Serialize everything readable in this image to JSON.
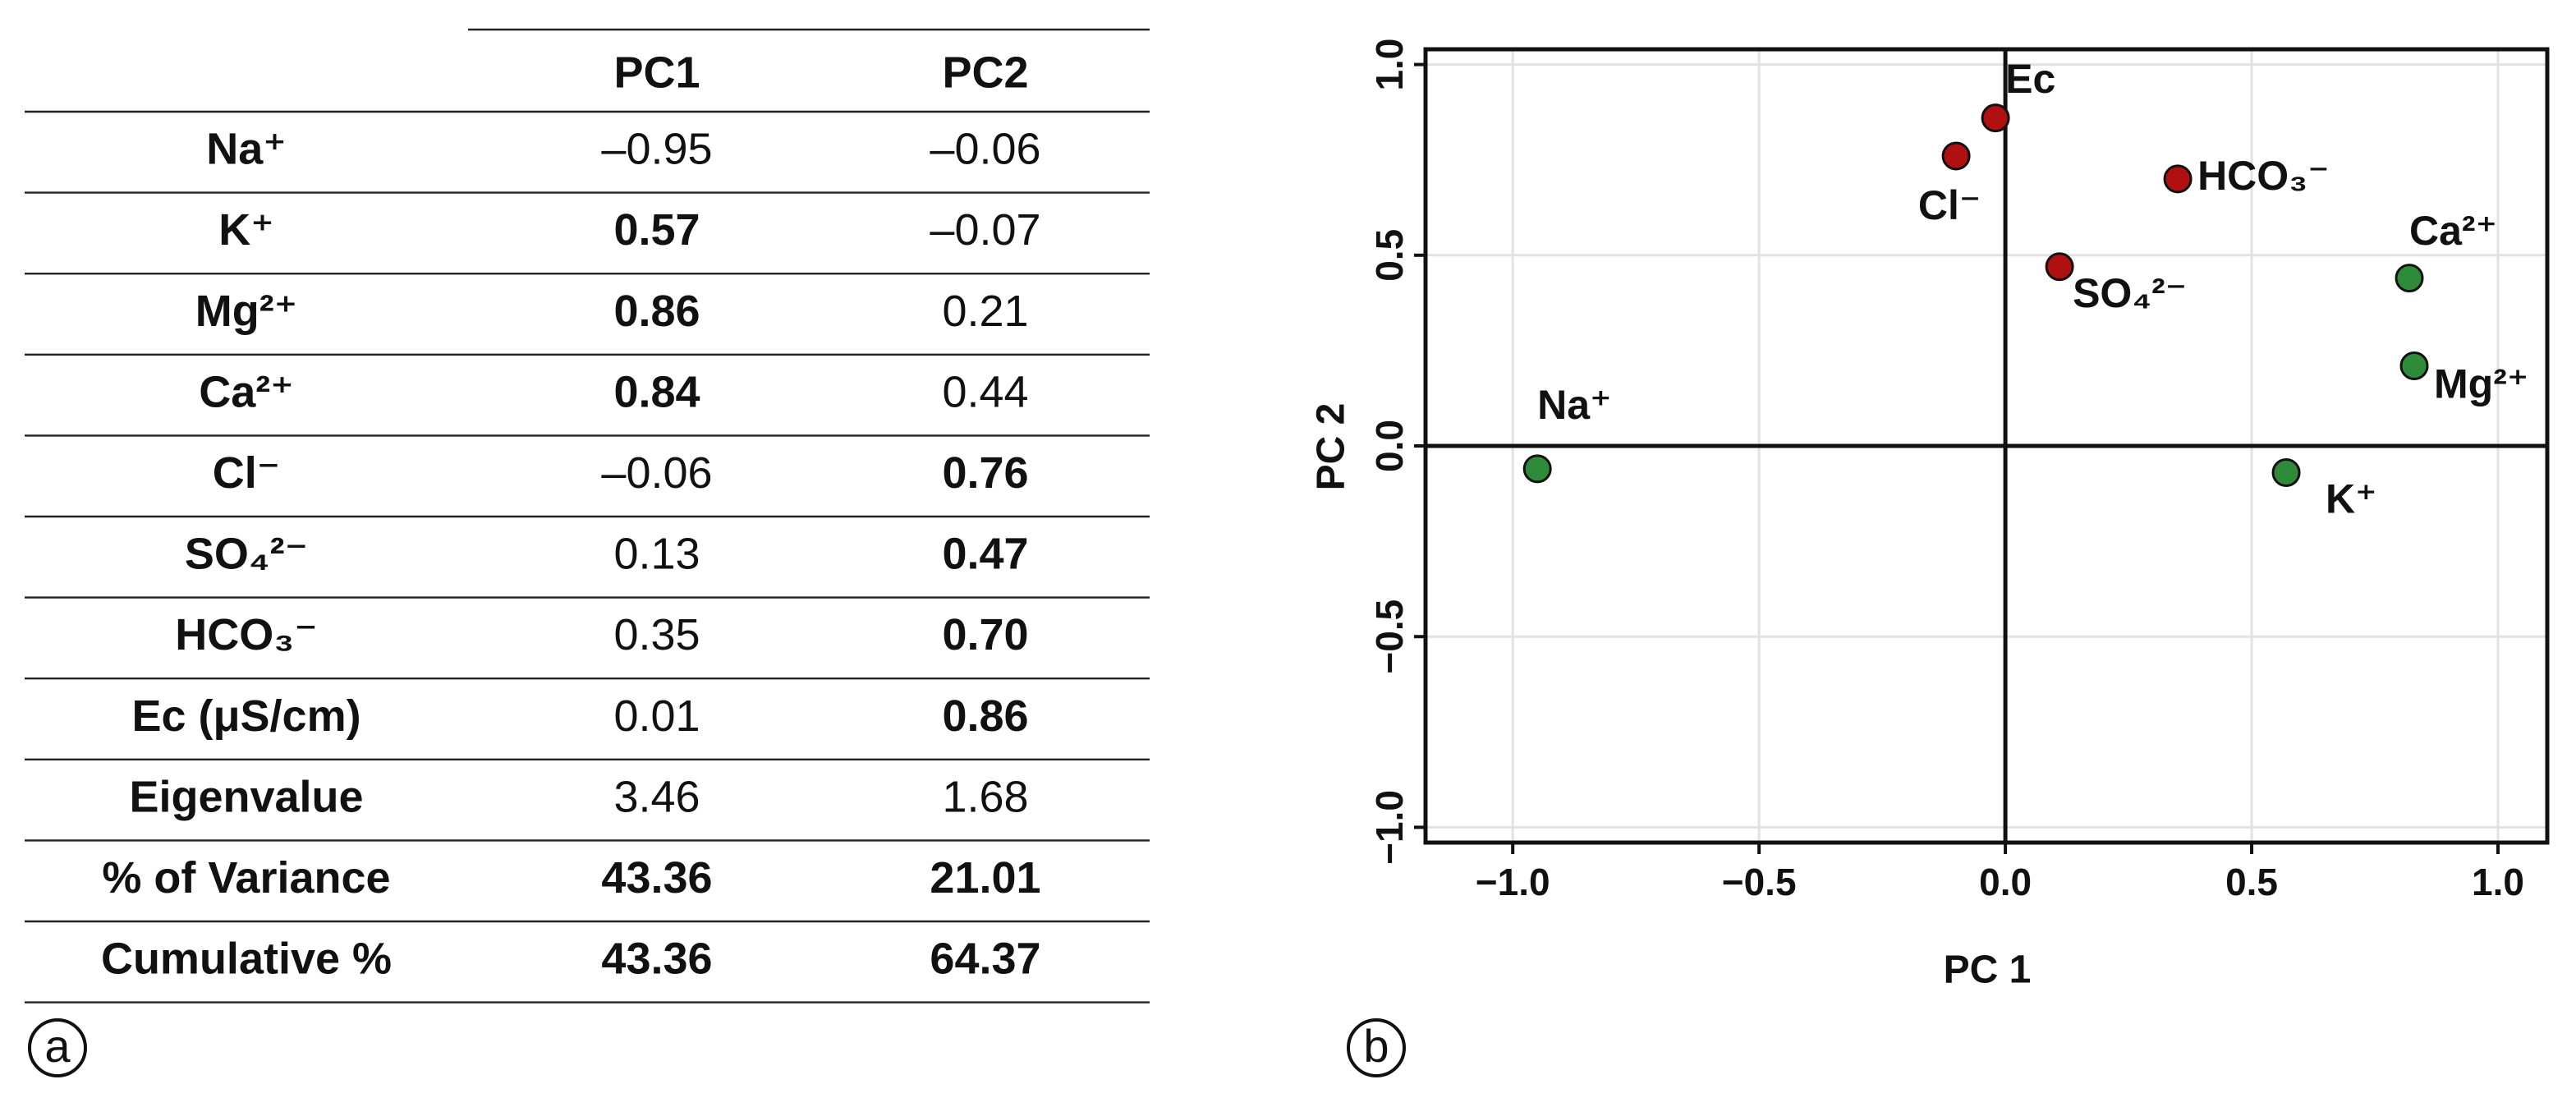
{
  "table": {
    "columns": [
      "PC1",
      "PC2"
    ],
    "rows": [
      {
        "label": "Na⁺",
        "values": [
          "–0.95",
          "–0.06"
        ],
        "bold": [
          false,
          false
        ]
      },
      {
        "label": "K⁺",
        "values": [
          "0.57",
          "–0.07"
        ],
        "bold": [
          true,
          false
        ]
      },
      {
        "label": "Mg²⁺",
        "values": [
          "0.86",
          "0.21"
        ],
        "bold": [
          true,
          false
        ]
      },
      {
        "label": "Ca²⁺",
        "values": [
          "0.84",
          "0.44"
        ],
        "bold": [
          true,
          false
        ]
      },
      {
        "label": "Cl⁻",
        "values": [
          "–0.06",
          "0.76"
        ],
        "bold": [
          false,
          true
        ]
      },
      {
        "label": "SO₄²⁻",
        "values": [
          "0.13",
          "0.47"
        ],
        "bold": [
          false,
          true
        ]
      },
      {
        "label": "HCO₃⁻",
        "values": [
          "0.35",
          "0.70"
        ],
        "bold": [
          false,
          true
        ]
      },
      {
        "label": "Ec (μS/cm)",
        "values": [
          "0.01",
          "0.86"
        ],
        "bold": [
          false,
          true
        ]
      },
      {
        "label": "Eigenvalue",
        "values": [
          "3.46",
          "1.68"
        ],
        "bold": [
          false,
          false
        ]
      },
      {
        "label": "% of Variance",
        "values": [
          "43.36",
          "21.01"
        ],
        "bold": [
          true,
          true
        ]
      },
      {
        "label": "Cumulative %",
        "values": [
          "43.36",
          "64.37"
        ],
        "bold": [
          true,
          true
        ]
      }
    ]
  },
  "panel_labels": [
    "a",
    "b"
  ],
  "chart_data": {
    "type": "scatter",
    "xlabel": "PC 1",
    "ylabel": "PC 2",
    "point_labels": [
      "Na⁺",
      "K⁺",
      "Mg²⁺",
      "Ca²⁺",
      "Cl⁻",
      "SO₄²⁻",
      "HCO₃⁻",
      "Ec"
    ],
    "x": [
      -0.95,
      0.57,
      0.83,
      0.82,
      -0.1,
      0.11,
      0.35,
      -0.02
    ],
    "y": [
      -0.06,
      -0.07,
      0.21,
      0.44,
      0.76,
      0.47,
      0.7,
      0.86
    ],
    "colors": [
      "#2e8b3a",
      "#2e8b3a",
      "#2e8b3a",
      "#2e8b3a",
      "#b01010",
      "#b01010",
      "#b01010",
      "#b01010"
    ],
    "xlim": [
      -1.177,
      1.1
    ],
    "ylim": [
      -1.04,
      1.04
    ],
    "xticks": [
      {
        "value": -1,
        "label": "−1.0"
      },
      {
        "value": -0.5,
        "label": "−0.5"
      },
      {
        "value": 0,
        "label": "0.0"
      },
      {
        "value": 0.5,
        "label": "0.5"
      },
      {
        "value": 1,
        "label": "1.0"
      }
    ],
    "yticks": [
      {
        "value": -1,
        "label": "−1.0"
      },
      {
        "value": -0.5,
        "label": "−0.5"
      },
      {
        "value": 0,
        "label": "0.0"
      },
      {
        "value": 0.5,
        "label": "0.5"
      },
      {
        "value": 1,
        "label": "1.0"
      }
    ],
    "grid": true
  }
}
